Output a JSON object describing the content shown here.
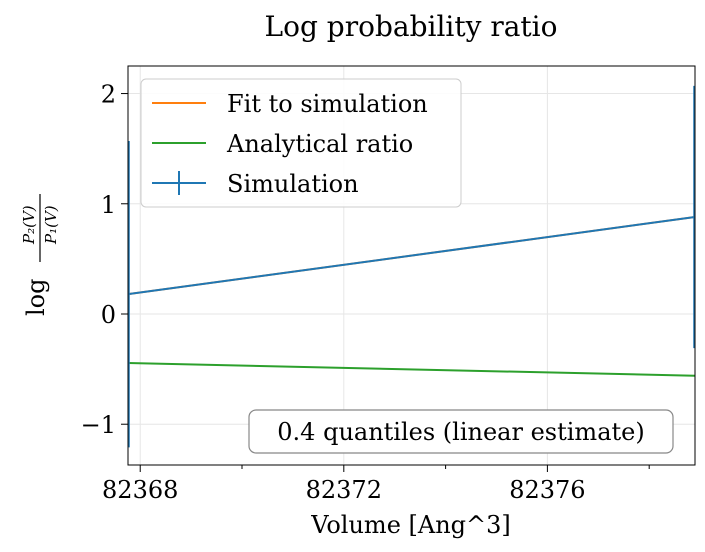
{
  "chart_data": {
    "type": "line",
    "title": "Log probability ratio",
    "xlabel": "Volume [Ang^3]",
    "ylabel_prefix": "log",
    "ylabel_num": "P₂(V)",
    "ylabel_den": "P₁(V)",
    "xlim": [
      82367.76,
      82378.9
    ],
    "ylim": [
      -1.37,
      2.25
    ],
    "x_ticks": [
      82368,
      82372,
      82376
    ],
    "x_tick_labels": [
      "82368",
      "82372",
      "82376"
    ],
    "x_minor_ticks": [
      82370,
      82374,
      82378
    ],
    "y_ticks": [
      -1,
      0,
      1,
      2
    ],
    "y_tick_labels": [
      "−1",
      "0",
      "1",
      "2"
    ],
    "grid": true,
    "legend_position": "top-left",
    "series": [
      {
        "name": "Fit to simulation",
        "color": "#ff7f0e",
        "x": [
          82367.76,
          82378.9
        ],
        "y": [
          0.18,
          0.88
        ]
      },
      {
        "name": "Analytical ratio",
        "color": "#2ca02c",
        "x": [
          82367.76,
          82378.9
        ],
        "y": [
          -0.445,
          -0.56
        ]
      },
      {
        "name": "Simulation",
        "color": "#1f77b4",
        "x": [
          82367.76,
          82378.9
        ],
        "y": [
          0.18,
          0.88
        ],
        "yerr": [
          1.39,
          1.19
        ]
      }
    ],
    "annotation": "0.4 quantiles (linear estimate)"
  }
}
